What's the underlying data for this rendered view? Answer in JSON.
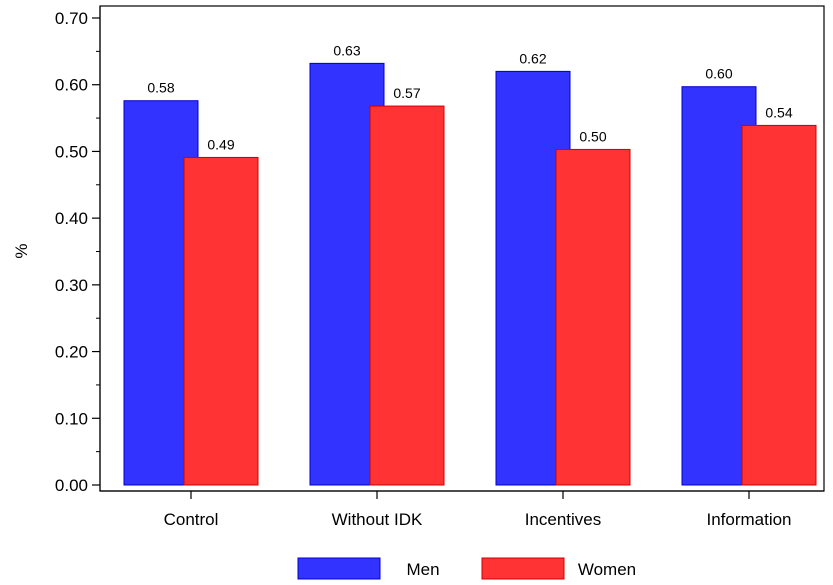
{
  "chart_data": {
    "type": "bar",
    "title": "",
    "xlabel": "",
    "ylabel": "%",
    "ylim": [
      0,
      0.7
    ],
    "yticks": [
      "0.00",
      "0.10",
      "0.20",
      "0.30",
      "0.40",
      "0.50",
      "0.60",
      "0.70"
    ],
    "categories": [
      "Control",
      "Without IDK",
      "Incentives",
      "Information"
    ],
    "series": [
      {
        "name": "Men",
        "color": "#3333ff",
        "values": [
          0.576,
          0.632,
          0.62,
          0.597
        ],
        "labels": [
          "0.58",
          "0.63",
          "0.62",
          "0.60"
        ]
      },
      {
        "name": "Women",
        "color": "#ff3333",
        "values": [
          0.491,
          0.568,
          0.503,
          0.539
        ],
        "labels": [
          "0.49",
          "0.57",
          "0.50",
          "0.54"
        ]
      }
    ],
    "legend_position": "bottom",
    "grid": false
  }
}
